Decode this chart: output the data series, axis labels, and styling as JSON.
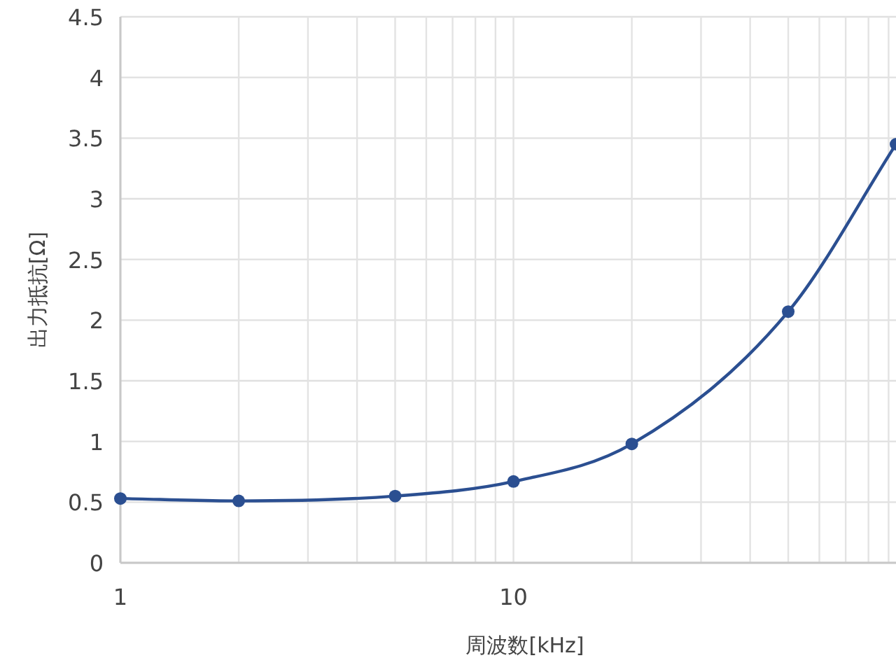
{
  "chart_data": {
    "type": "line",
    "xlabel": "周波数[kHz]",
    "ylabel": "出力抵抗[Ω]",
    "log": "x",
    "grid": true,
    "marker": "circle",
    "line_style": "solid",
    "xlim": [
      1,
      94
    ],
    "ylim": [
      0,
      4.5
    ],
    "xticks": [
      1,
      {
        "value": 2,
        "label": null
      },
      {
        "value": 3,
        "label": null
      },
      {
        "value": 4,
        "label": null
      },
      {
        "value": 5,
        "label": null
      },
      {
        "value": 6,
        "label": null
      },
      {
        "value": 7,
        "label": null
      },
      {
        "value": 8,
        "label": null
      },
      {
        "value": 9,
        "label": null
      },
      10,
      {
        "value": 20,
        "label": null
      },
      {
        "value": 30,
        "label": null
      },
      {
        "value": 40,
        "label": null
      },
      {
        "value": 50,
        "label": null
      },
      {
        "value": 60,
        "label": null
      },
      {
        "value": 70,
        "label": null
      },
      {
        "value": 80,
        "label": null
      },
      {
        "value": 90,
        "label": null
      }
    ],
    "yticks": [
      0,
      0.5,
      1,
      1.5,
      2,
      2.5,
      3,
      3.5,
      4,
      4.5
    ],
    "x": [
      1,
      2,
      5,
      10,
      20,
      50,
      94
    ],
    "series": [
      {
        "color": "#2b4f91",
        "values": [
          0.53,
          0.51,
          0.55,
          0.67,
          0.98,
          2.07,
          3.45
        ]
      }
    ]
  }
}
